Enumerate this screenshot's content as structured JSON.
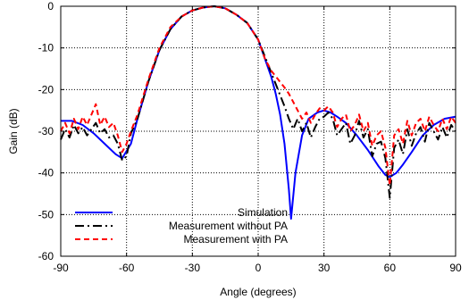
{
  "chart_data": {
    "type": "line",
    "title": "",
    "xlabel": "Angle (degrees)",
    "ylabel": "Gain (dB)",
    "xlim": [
      -90,
      90
    ],
    "ylim": [
      -60,
      0
    ],
    "xticks": [
      -90,
      -60,
      -30,
      0,
      30,
      60,
      90
    ],
    "yticks": [
      0,
      -10,
      -20,
      -30,
      -40,
      -50,
      -60
    ],
    "grid": true,
    "grid_style": "dotted",
    "legend_position": "bottom-left",
    "series": [
      {
        "name": "Simulation",
        "color": "#0000ff",
        "dash": "solid",
        "x": [
          -90,
          -85,
          -80,
          -75,
          -70,
          -65,
          -62,
          -58,
          -55,
          -50,
          -45,
          -40,
          -35,
          -30,
          -25,
          -20,
          -15,
          -10,
          -5,
          0,
          2,
          4,
          6,
          8,
          10,
          12,
          14,
          15,
          17,
          20,
          23,
          27,
          30,
          33,
          36,
          40,
          45,
          50,
          55,
          58,
          60,
          63,
          66,
          70,
          75,
          80,
          85,
          90
        ],
        "y": [
          -27.5,
          -27.5,
          -28.5,
          -30.5,
          -33,
          -35.5,
          -36.5,
          -33,
          -27,
          -18,
          -10.5,
          -5.5,
          -2.5,
          -1,
          -0.3,
          0,
          -0.5,
          -2,
          -4,
          -8,
          -11,
          -14,
          -17,
          -21,
          -26,
          -33,
          -44,
          -51,
          -40,
          -31,
          -27,
          -25.5,
          -25,
          -25.5,
          -26.5,
          -28,
          -31,
          -34.5,
          -38.5,
          -40.5,
          -41,
          -40,
          -38,
          -35,
          -31,
          -28.5,
          -27,
          -26.5
        ]
      },
      {
        "name": "Measurement without PA",
        "color": "#000000",
        "dash": "dashdot",
        "x": [
          -90,
          -88,
          -86,
          -84,
          -82,
          -80,
          -78,
          -76,
          -74,
          -72,
          -70,
          -68,
          -66,
          -64,
          -62,
          -60,
          -58,
          -55,
          -50,
          -45,
          -40,
          -35,
          -30,
          -25,
          -20,
          -15,
          -10,
          -5,
          0,
          3,
          6,
          9,
          12,
          14,
          16,
          18,
          20,
          22,
          24,
          26,
          28,
          30,
          32,
          34,
          36,
          38,
          40,
          42,
          44,
          46,
          48,
          50,
          52,
          54,
          56,
          58,
          60,
          62,
          64,
          66,
          68,
          70,
          72,
          74,
          76,
          78,
          80,
          82,
          84,
          86,
          88,
          90
        ],
        "y": [
          -32,
          -29.5,
          -31.5,
          -28.5,
          -30.5,
          -29,
          -31,
          -29.5,
          -28,
          -30.5,
          -29.5,
          -31.5,
          -31,
          -33,
          -37,
          -36,
          -30.5,
          -27,
          -18,
          -10.5,
          -5.5,
          -2.5,
          -1,
          -0.3,
          0,
          -0.5,
          -2,
          -4,
          -8,
          -12,
          -16,
          -20,
          -24,
          -27,
          -29.5,
          -27,
          -30,
          -28,
          -31.5,
          -29,
          -27,
          -26.5,
          -25.5,
          -27,
          -31,
          -29.5,
          -28,
          -33,
          -31,
          -27.5,
          -31.5,
          -29.5,
          -36,
          -33,
          -32.5,
          -36.5,
          -46,
          -34,
          -32,
          -35.5,
          -29.5,
          -33.5,
          -30.5,
          -29,
          -32.5,
          -28,
          -30,
          -32,
          -29,
          -31.5,
          -28.5,
          -30
        ]
      },
      {
        "name": "Measurement with PA",
        "color": "#ff0000",
        "dash": "dashed",
        "x": [
          -90,
          -88,
          -86,
          -84,
          -82,
          -80,
          -78,
          -76,
          -74,
          -72,
          -70,
          -68,
          -66,
          -64,
          -62,
          -60,
          -58,
          -55,
          -50,
          -45,
          -40,
          -35,
          -30,
          -25,
          -20,
          -15,
          -10,
          -5,
          0,
          3,
          6,
          9,
          12,
          14,
          16,
          18,
          20,
          22,
          24,
          26,
          28,
          30,
          32,
          34,
          36,
          38,
          40,
          42,
          44,
          46,
          48,
          50,
          52,
          54,
          56,
          58,
          60,
          62,
          64,
          66,
          68,
          70,
          72,
          74,
          76,
          78,
          80,
          82,
          84,
          86,
          88,
          90
        ],
        "y": [
          -30,
          -28,
          -30.5,
          -27,
          -29.5,
          -26.5,
          -28.5,
          -26,
          -23.5,
          -28.5,
          -26.5,
          -29,
          -28,
          -31,
          -35,
          -33,
          -30,
          -26,
          -17.5,
          -10,
          -5,
          -2.5,
          -1,
          -0.3,
          0,
          -0.5,
          -2,
          -4,
          -8,
          -12.5,
          -15.5,
          -17.5,
          -19.5,
          -21,
          -23,
          -25,
          -27,
          -25.5,
          -28,
          -26,
          -24.5,
          -25,
          -24,
          -25.5,
          -29,
          -27,
          -26,
          -30,
          -28.5,
          -26,
          -30,
          -28,
          -33.5,
          -31,
          -30,
          -34,
          -43,
          -31,
          -29.5,
          -33,
          -27.5,
          -31,
          -28,
          -27,
          -30,
          -26.5,
          -28.5,
          -30,
          -27,
          -29.5,
          -26.5,
          -28
        ]
      }
    ]
  }
}
